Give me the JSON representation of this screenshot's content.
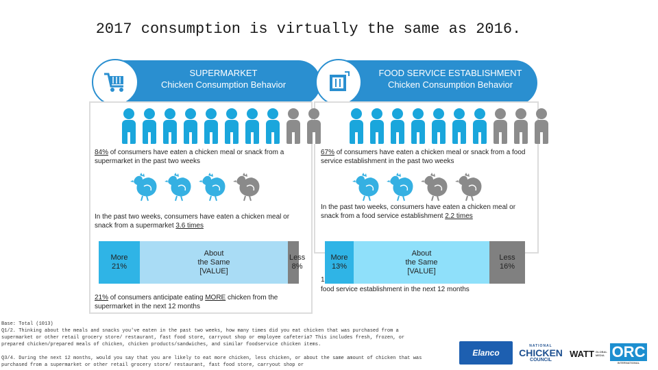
{
  "title": "2017 consumption is virtually the same as 2016.",
  "left": {
    "banner_line1": "SUPERMARKET",
    "banner_line2": "Chicken Consumption Behavior",
    "icon": "shopping-cart-icon",
    "stat1_pct": "84%",
    "stat1_text": " of consumers have eaten a chicken meal or snack from a supermarket in the past two weeks",
    "stat2_text": "In the past two weeks, consumers have eaten a chicken meal or snack from a supermarket ",
    "stat2_times": "3.6 times",
    "bar_more": "More\n21%",
    "bar_same": "About\nthe Same\n[VALUE]",
    "bar_less": "Less\n8%",
    "bar_more_pct": 21,
    "bar_less_pct": 8,
    "stat3_pct": "21%",
    "stat3_text_a": " of consumers anticipate eating ",
    "stat3_more": "MORE",
    "stat3_text_b": " chicken from the supermarket in the next 12 months"
  },
  "right": {
    "banner_line1": "FOOD SERVICE ESTABLISHMENT",
    "banner_line2": "Chicken Consumption Behavior",
    "icon": "restaurant-icon",
    "stat1_pct": "67%",
    "stat1_text": " of consumers have eaten a chicken meal or snack from a food service establishment in the past two weeks",
    "stat2_text": "In the past two weeks, consumers have eaten a chicken meal or snack from a food service establishment ",
    "stat2_times": "2.2 times",
    "bar_more": "More\n13%",
    "bar_same": "About\nthe Same\n[VALUE]",
    "bar_less": "Less\n16%",
    "bar_more_pct": 13,
    "bar_less_pct": 16,
    "overlap_text": "1",
    "stat3_text": "food service establishment in the next 12 months"
  },
  "footnotes": {
    "base": "Base: Total (1013)",
    "q1": "Q1/2. Thinking about the meals and snacks you've eaten in the past two weeks, how many times did you eat chicken that was purchased from a supermarket or other retail grocery store/ restaurant, fast food store, carryout shop or employee cafeteria? This includes fresh, frozen, or prepared chicken/prepared meals of chicken, chicken products/sandwiches, and similar foodservice chicken items.",
    "q3": "Q3/4. During the next 12 months, would you say that you are likely to eat more chicken, less chicken, or about the same amount of chicken that was purchased from a supermarket or other retail grocery store/ restaurant, fast food store, carryout shop or"
  },
  "logos": {
    "elanco": "Elanco",
    "ncc_top": "NATIONAL",
    "ncc_mid": "CHICKEN",
    "ncc_bot": "COUNCIL",
    "watt": "WATT",
    "watt_sub": "GLOBAL MEDIA",
    "orc": "ORC",
    "orc_sub": "INTERNATIONAL"
  },
  "colors": {
    "banner": "#2a8fd0",
    "person_blue": "#1aa6dc",
    "person_gray": "#8c8c8c",
    "chicken_blue": "#35b0e2",
    "chicken_gray": "#8a8a8a",
    "bar_more": "#2fb4e6",
    "bar_same": "#a9dcf5",
    "bar_less": "#808080",
    "bar_same_right": "#8fe0fa"
  }
}
